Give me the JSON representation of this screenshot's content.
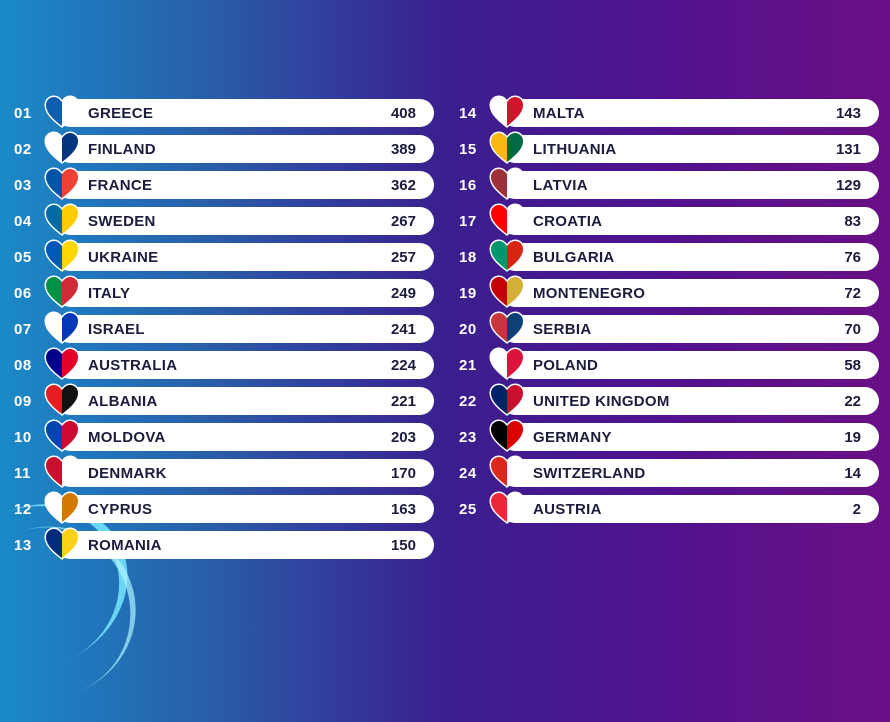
{
  "entries": [
    {
      "rank": "01",
      "country": "GREECE",
      "points": "408",
      "flag": [
        "#0d5eaf",
        "#ffffff"
      ]
    },
    {
      "rank": "02",
      "country": "FINLAND",
      "points": "389",
      "flag": [
        "#ffffff",
        "#003580"
      ]
    },
    {
      "rank": "03",
      "country": "FRANCE",
      "points": "362",
      "flag": [
        "#0055a4",
        "#ef4135"
      ]
    },
    {
      "rank": "04",
      "country": "SWEDEN",
      "points": "267",
      "flag": [
        "#006aa7",
        "#fecc00"
      ]
    },
    {
      "rank": "05",
      "country": "UKRAINE",
      "points": "257",
      "flag": [
        "#0057b7",
        "#ffd700"
      ]
    },
    {
      "rank": "06",
      "country": "ITALY",
      "points": "249",
      "flag": [
        "#009246",
        "#ce2b37"
      ]
    },
    {
      "rank": "07",
      "country": "ISRAEL",
      "points": "241",
      "flag": [
        "#ffffff",
        "#0038b8"
      ]
    },
    {
      "rank": "08",
      "country": "AUSTRALIA",
      "points": "224",
      "flag": [
        "#00008b",
        "#e4002b"
      ]
    },
    {
      "rank": "09",
      "country": "ALBANIA",
      "points": "221",
      "flag": [
        "#e41e20",
        "#111111"
      ]
    },
    {
      "rank": "10",
      "country": "MOLDOVA",
      "points": "203",
      "flag": [
        "#0046ae",
        "#cc092f"
      ]
    },
    {
      "rank": "11",
      "country": "DENMARK",
      "points": "170",
      "flag": [
        "#c8102e",
        "#ffffff"
      ]
    },
    {
      "rank": "12",
      "country": "CYPRUS",
      "points": "163",
      "flag": [
        "#ffffff",
        "#d57800"
      ]
    },
    {
      "rank": "13",
      "country": "ROMANIA",
      "points": "150",
      "flag": [
        "#002b7f",
        "#fcd116"
      ]
    },
    {
      "rank": "14",
      "country": "MALTA",
      "points": "143",
      "flag": [
        "#ffffff",
        "#cf142b"
      ]
    },
    {
      "rank": "15",
      "country": "LITHUANIA",
      "points": "131",
      "flag": [
        "#fdb913",
        "#006a44"
      ]
    },
    {
      "rank": "16",
      "country": "LATVIA",
      "points": "129",
      "flag": [
        "#9e3039",
        "#ffffff"
      ]
    },
    {
      "rank": "17",
      "country": "CROATIA",
      "points": "83",
      "flag": [
        "#ff0000",
        "#ffffff"
      ]
    },
    {
      "rank": "18",
      "country": "BULGARIA",
      "points": "76",
      "flag": [
        "#00966e",
        "#d62612"
      ]
    },
    {
      "rank": "19",
      "country": "MONTENEGRO",
      "points": "72",
      "flag": [
        "#c40308",
        "#d4af37"
      ]
    },
    {
      "rank": "20",
      "country": "SERBIA",
      "points": "70",
      "flag": [
        "#c6363c",
        "#0c4076"
      ]
    },
    {
      "rank": "21",
      "country": "POLAND",
      "points": "58",
      "flag": [
        "#ffffff",
        "#dc143c"
      ]
    },
    {
      "rank": "22",
      "country": "UNITED KINGDOM",
      "points": "22",
      "flag": [
        "#012169",
        "#c8102e"
      ]
    },
    {
      "rank": "23",
      "country": "GERMANY",
      "points": "19",
      "flag": [
        "#000000",
        "#dd0000"
      ]
    },
    {
      "rank": "24",
      "country": "SWITZERLAND",
      "points": "14",
      "flag": [
        "#da291c",
        "#ffffff"
      ]
    },
    {
      "rank": "25",
      "country": "AUSTRIA",
      "points": "2",
      "flag": [
        "#ed2939",
        "#ffffff"
      ]
    }
  ]
}
